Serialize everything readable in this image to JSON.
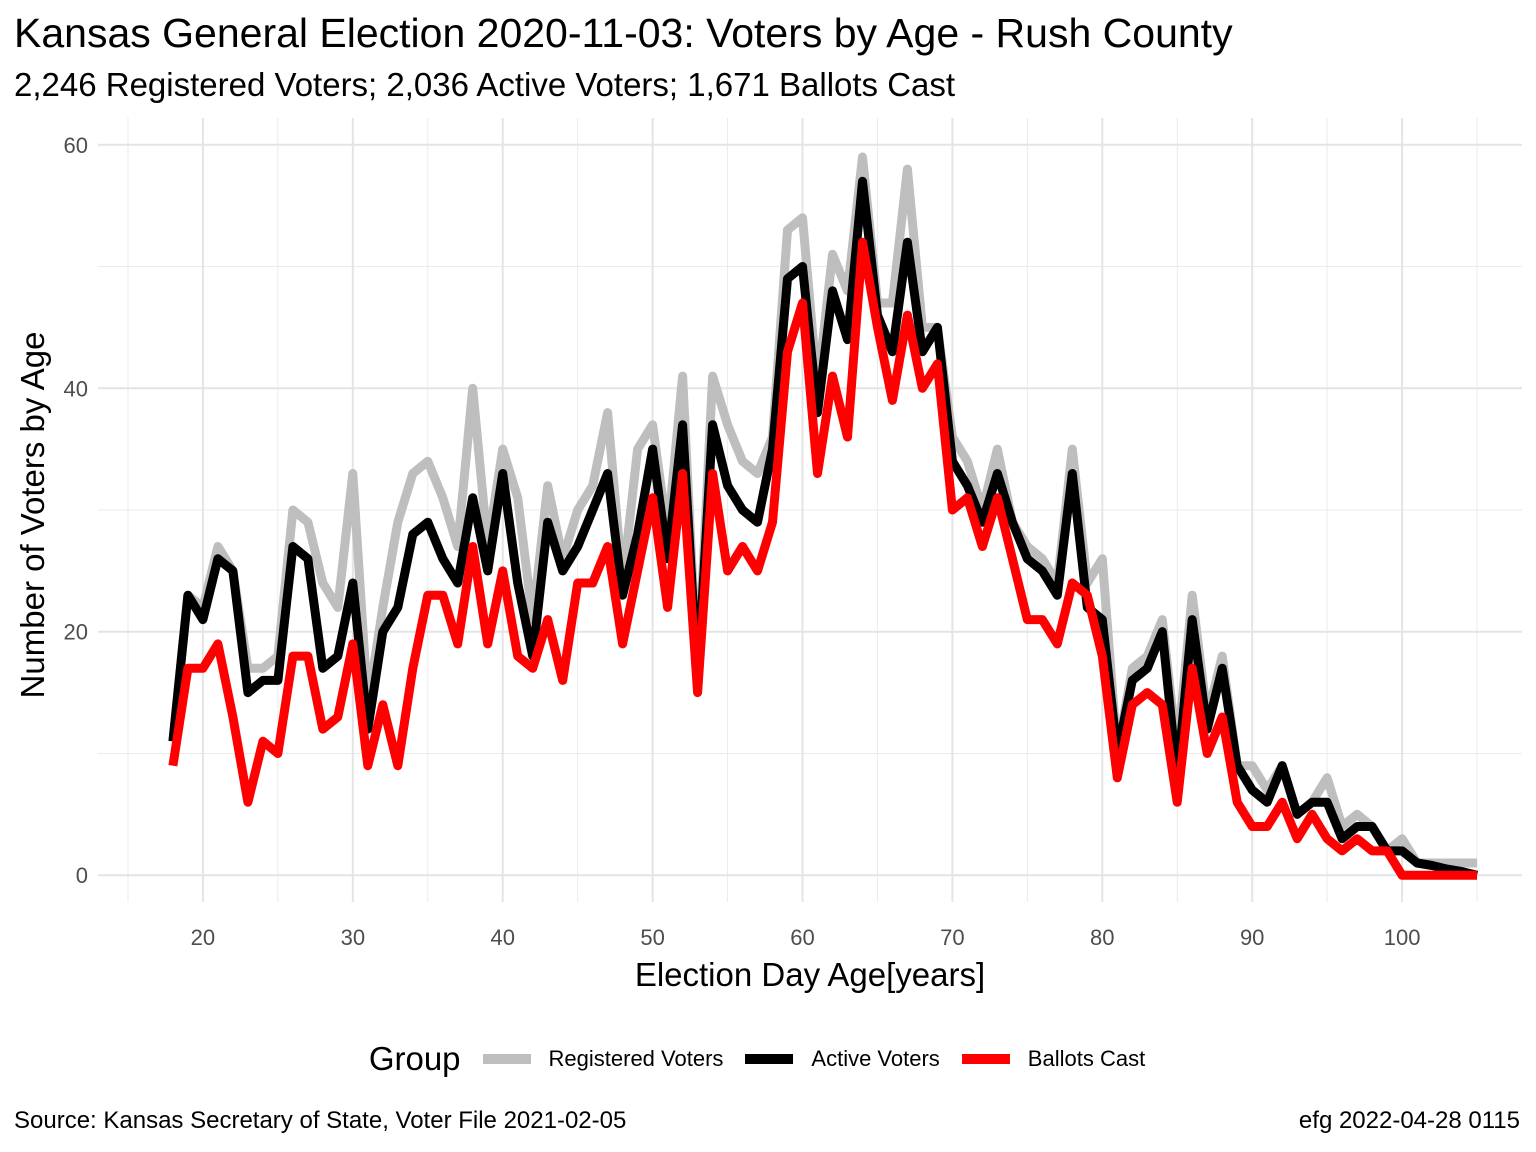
{
  "chart_data": {
    "type": "line",
    "title": "Kansas General Election 2020-11-03:  Voters by Age - Rush County",
    "subtitle": "2,246 Registered Voters; 2,036 Active Voters; 1,671 Ballots Cast",
    "xlabel": "Election Day Age[years]",
    "ylabel": "Number of Voters by Age",
    "xlim": [
      13,
      108
    ],
    "ylim": [
      -2.2,
      62.2
    ],
    "x_ticks": [
      20,
      30,
      40,
      50,
      60,
      70,
      80,
      90,
      100
    ],
    "y_ticks": [
      0,
      20,
      40,
      60
    ],
    "grid": true,
    "legend_title": "Group",
    "legend_position": "bottom",
    "caption_left": "Source:  Kansas Secretary of State, Voter File  2021-02-05",
    "caption_right": "efg 2022-04-28 0115",
    "x": [
      18,
      19,
      20,
      21,
      22,
      23,
      24,
      25,
      26,
      27,
      28,
      29,
      30,
      31,
      32,
      33,
      34,
      35,
      36,
      37,
      38,
      39,
      40,
      41,
      42,
      43,
      44,
      45,
      46,
      47,
      48,
      49,
      50,
      51,
      52,
      53,
      54,
      55,
      56,
      57,
      58,
      59,
      60,
      61,
      62,
      63,
      64,
      65,
      66,
      67,
      68,
      69,
      70,
      71,
      72,
      73,
      74,
      75,
      76,
      77,
      78,
      79,
      80,
      81,
      82,
      83,
      84,
      85,
      86,
      87,
      88,
      89,
      90,
      91,
      92,
      93,
      94,
      95,
      96,
      97,
      98,
      99,
      100,
      101,
      102,
      103,
      104,
      105
    ],
    "series": [
      {
        "name": "Registered Voters",
        "color": "#bebebe",
        "values": [
          11,
          23,
          22,
          27,
          25,
          17,
          17,
          18,
          30,
          29,
          24,
          22,
          33,
          14,
          22,
          29,
          33,
          34,
          31,
          27,
          40,
          27,
          35,
          31,
          21,
          32,
          26,
          30,
          32,
          38,
          24,
          35,
          37,
          28,
          41,
          16,
          41,
          37,
          34,
          33,
          36,
          53,
          54,
          40,
          51,
          48,
          59,
          47,
          47,
          58,
          45,
          45,
          36,
          34,
          30,
          35,
          29,
          27,
          26,
          24,
          35,
          24,
          26,
          10,
          17,
          18,
          21,
          10,
          23,
          13,
          18,
          9,
          9,
          7,
          9,
          5,
          6,
          8,
          4,
          5,
          4,
          2,
          3,
          1,
          1,
          1,
          1,
          1
        ]
      },
      {
        "name": "Active Voters",
        "color": "#000000",
        "values": [
          11,
          23,
          21,
          26,
          25,
          15,
          16,
          16,
          27,
          26,
          17,
          18,
          24,
          12,
          20,
          22,
          28,
          29,
          26,
          24,
          31,
          25,
          33,
          24,
          18,
          29,
          25,
          27,
          30,
          33,
          23,
          28,
          35,
          26,
          37,
          16,
          37,
          32,
          30,
          29,
          35,
          49,
          50,
          38,
          48,
          44,
          57,
          46,
          43,
          52,
          43,
          45,
          34,
          32,
          29,
          33,
          29,
          26,
          25,
          23,
          33,
          22,
          21,
          10,
          16,
          17,
          20,
          8,
          21,
          12,
          17,
          9,
          7,
          6,
          9,
          5,
          6,
          6,
          3,
          4,
          4,
          2,
          2,
          1,
          0.8,
          0.5,
          0.3,
          0
        ]
      },
      {
        "name": "Ballots Cast",
        "color": "#ff0000",
        "values": [
          9,
          17,
          17,
          19,
          13,
          6,
          11,
          10,
          18,
          18,
          12,
          13,
          19,
          9,
          14,
          9,
          17,
          23,
          23,
          19,
          27,
          19,
          25,
          18,
          17,
          21,
          16,
          24,
          24,
          27,
          19,
          25,
          31,
          22,
          33,
          15,
          33,
          25,
          27,
          25,
          29,
          43,
          47,
          33,
          41,
          36,
          52,
          45,
          39,
          46,
          40,
          42,
          30,
          31,
          27,
          31,
          26,
          21,
          21,
          19,
          24,
          23,
          18,
          8,
          14,
          15,
          14,
          6,
          17,
          10,
          13,
          6,
          4,
          4,
          6,
          3,
          5,
          3,
          2,
          3,
          2,
          2,
          0,
          0,
          0,
          0,
          0,
          0
        ]
      }
    ]
  }
}
